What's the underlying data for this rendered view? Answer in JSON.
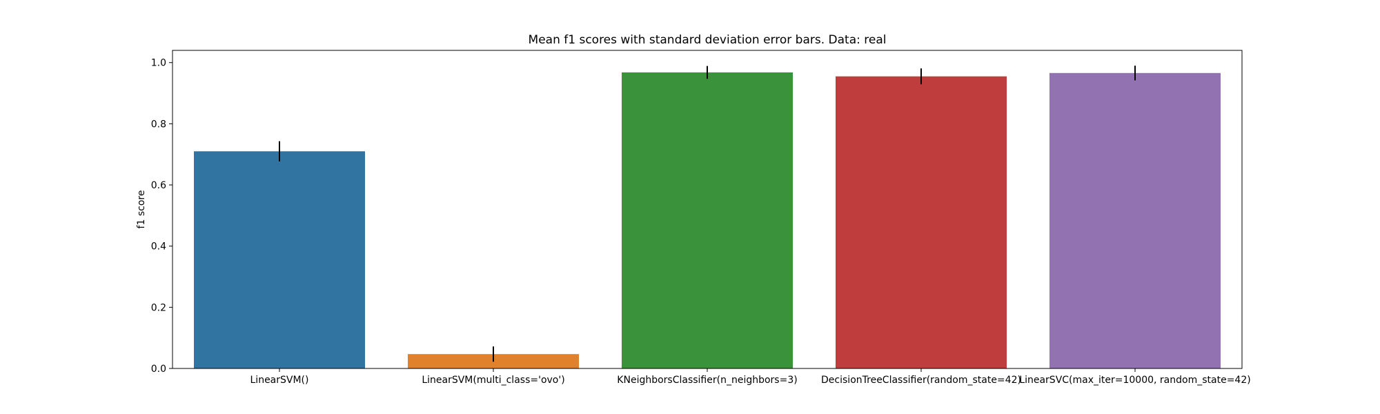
{
  "chart_data": {
    "type": "bar",
    "title": "Mean f1 scores with standard deviation error bars. Data: real",
    "xlabel": "",
    "ylabel": "f1 score",
    "ylim": [
      0,
      1.04
    ],
    "yticks": [
      "0.0",
      "0.2",
      "0.4",
      "0.6",
      "0.8",
      "1.0"
    ],
    "grid": false,
    "categories": [
      "LinearSVM()",
      "LinearSVM(multi_class='ovo')",
      "KNeighborsClassifier(n_neighbors=3)",
      "DecisionTreeClassifier(random_state=42)",
      "LinearSVC(max_iter=10000, random_state=42)"
    ],
    "values": [
      0.71,
      0.047,
      0.968,
      0.955,
      0.966
    ],
    "errors": [
      0.033,
      0.025,
      0.021,
      0.026,
      0.024
    ],
    "colors": [
      "#3274a1",
      "#e1812c",
      "#3a923a",
      "#c03d3e",
      "#9372b2"
    ]
  }
}
